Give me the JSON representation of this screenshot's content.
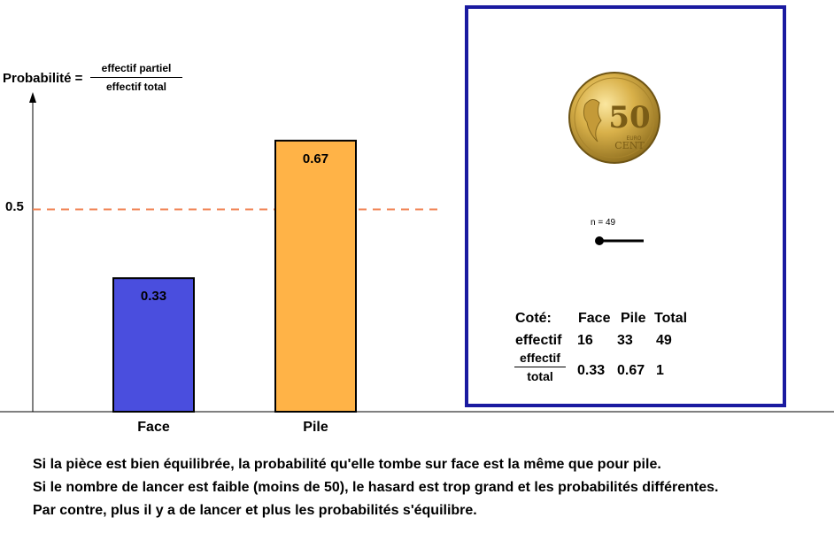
{
  "chart_data": {
    "type": "bar",
    "categories": [
      "Face",
      "Pile"
    ],
    "values": [
      0.33,
      0.67
    ],
    "value_labels": [
      "0.33",
      "0.67"
    ],
    "colors": [
      "#4a4ede",
      "#ffb347"
    ],
    "ylabel_prefix": "Probabilité =",
    "ylabel_fraction": {
      "numerator": "effectif partiel",
      "denominator": "effectif total"
    },
    "ylim": [
      0,
      1
    ],
    "reference_line": {
      "value": 0.5,
      "label": "0.5",
      "color": "#f08050",
      "style": "dashed"
    },
    "grid": false
  },
  "panel": {
    "coin_denomination": "50",
    "coin_text_euro": "EURO",
    "coin_text_cent": "CENT",
    "slider_label": "n = 49",
    "slider_value": 49,
    "table": {
      "header": [
        "Coté:",
        "Face",
        "Pile",
        "Total"
      ],
      "row_effectif": [
        "effectif",
        "16",
        "33",
        "49"
      ],
      "row_ratio_label": {
        "numerator": "effectif",
        "denominator": "total"
      },
      "row_ratio": [
        "0.33",
        "0.67",
        "1"
      ]
    }
  },
  "notes": [
    "Si la pièce est bien équilibrée, la probabilité qu'elle tombe sur face est la même que pour pile.",
    "Si le nombre de lancer est faible  (moins de 50), le hasard est trop grand et les probabilités différentes.",
    "Par contre, plus il y a de lancer et plus les probabilités s'équilibre."
  ]
}
